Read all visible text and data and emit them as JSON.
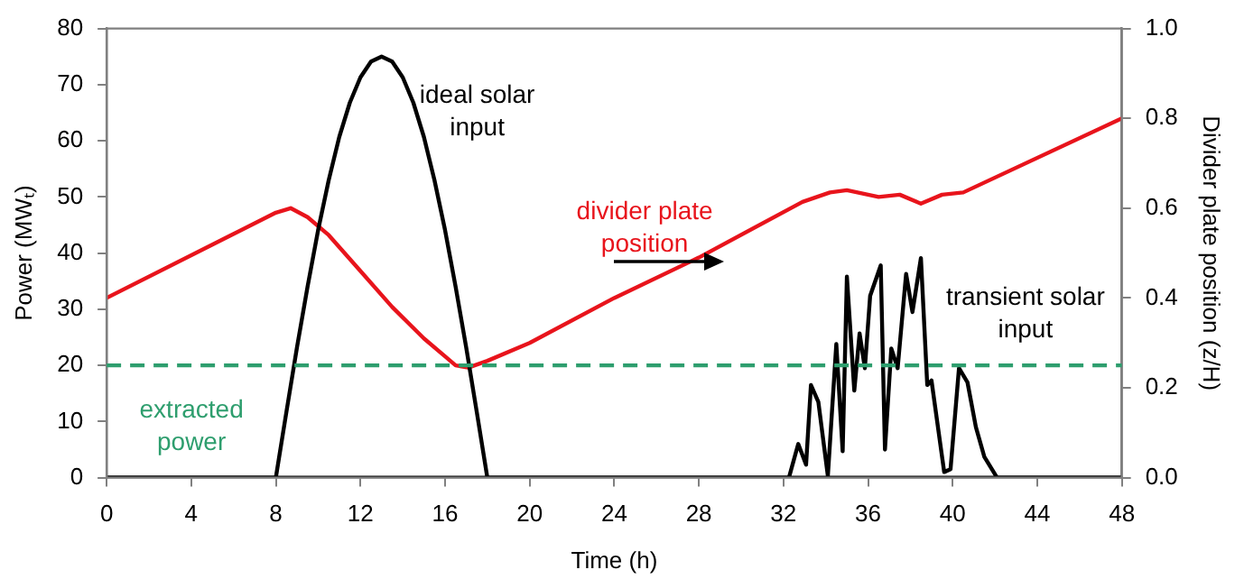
{
  "chart_data": {
    "type": "line",
    "xlabel": "Time (h)",
    "ylabel": "Power (MWₜ)",
    "y2label": "Divider plate position (z/H)",
    "xlim": [
      0,
      48
    ],
    "xticks": [
      0,
      4,
      8,
      12,
      16,
      20,
      24,
      28,
      32,
      36,
      40,
      44,
      48
    ],
    "ylim": [
      0,
      80
    ],
    "yticks": [
      0,
      10,
      20,
      30,
      40,
      50,
      60,
      70,
      80
    ],
    "y2lim": [
      0,
      1
    ],
    "y2ticks": [
      {
        "value": 0,
        "label": "0.0"
      },
      {
        "value": 0.2,
        "label": "0.2"
      },
      {
        "value": 0.4,
        "label": "0.4"
      },
      {
        "value": 0.6,
        "label": "0.6"
      },
      {
        "value": 0.8,
        "label": "0.8"
      },
      {
        "value": 1,
        "label": "1.0"
      }
    ],
    "grid": false,
    "legend": false,
    "marker": "none",
    "line_style": "solid",
    "series": [
      {
        "name": "ideal solar input",
        "color": "#000000",
        "x": [
          0,
          8,
          8.5,
          9,
          9.5,
          10,
          10.5,
          11,
          11.5,
          12,
          12.5,
          13,
          13.5,
          14,
          14.5,
          15,
          15.5,
          16,
          16.5,
          17,
          17.5,
          18,
          48
        ],
        "values": [
          0,
          0,
          11.7,
          23.2,
          34,
          44.1,
          53,
          60.7,
          66.8,
          71.3,
          74.1,
          75,
          74.1,
          71.3,
          66.8,
          60.7,
          53,
          44.1,
          34,
          23.2,
          11.7,
          0,
          0
        ]
      },
      {
        "name": "divider plate position",
        "color": "#e8141c",
        "axis": "y2",
        "x": [
          0,
          8,
          8.7,
          9.5,
          10.5,
          12,
          13.5,
          15,
          16,
          16.5,
          17.1,
          18,
          20,
          24,
          28,
          32.9,
          34.2,
          35,
          36.5,
          37.5,
          38.5,
          39.5,
          40.5,
          48
        ],
        "values": [
          0.4,
          0.59,
          0.6,
          0.58,
          0.54,
          0.46,
          0.38,
          0.31,
          0.27,
          0.25,
          0.245,
          0.26,
          0.3,
          0.4,
          0.49,
          0.614,
          0.635,
          0.64,
          0.625,
          0.63,
          0.61,
          0.63,
          0.635,
          0.8
        ]
      },
      {
        "name": "transient solar input",
        "color": "#000000",
        "x": [
          0,
          32.26,
          32.7,
          33.07,
          33.3,
          33.65,
          34.1,
          34.5,
          34.8,
          35,
          35.35,
          35.6,
          35.85,
          36.1,
          36.6,
          36.8,
          37.1,
          37.4,
          37.8,
          38.1,
          38.5,
          38.8,
          39,
          39.6,
          39.9,
          40.3,
          40.7,
          41.1,
          41.5,
          42.1,
          48
        ],
        "values": [
          0,
          0,
          6,
          2.3,
          16.5,
          13.5,
          0.3,
          23.8,
          4.7,
          35.8,
          15.5,
          25.7,
          19.5,
          32.4,
          37.8,
          5,
          23,
          19.5,
          36.3,
          29.5,
          39.1,
          16.5,
          17.3,
          1,
          1.5,
          19.5,
          17,
          9,
          3.7,
          0,
          0
        ]
      }
    ],
    "ref_lines": [
      {
        "axis": "y",
        "value": 20,
        "label": "extracted power",
        "color": "#2e9e6e",
        "line_style": "dashed"
      }
    ]
  }
}
